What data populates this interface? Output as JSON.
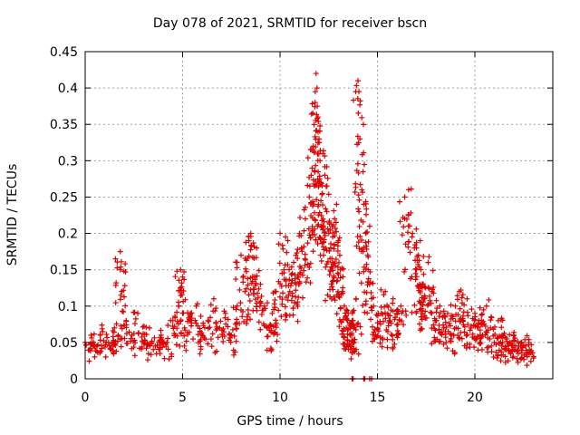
{
  "chart_data": {
    "type": "scatter",
    "title": "Day 078 of 2021, SRMTID for receiver bscn",
    "xlabel": "GPS time / hours",
    "ylabel": "SRMTID / TECUs",
    "xlim": [
      0,
      24
    ],
    "ylim": [
      0,
      0.45
    ],
    "grid": true,
    "marker": "+",
    "color": "#dd0000",
    "xticks": [
      "0",
      "5",
      "10",
      "15",
      "20"
    ],
    "yticks": [
      "0",
      "0.05",
      "0.1",
      "0.15",
      "0.2",
      "0.25",
      "0.3",
      "0.35",
      "0.4",
      "0.45"
    ],
    "series": [
      {
        "name": "SRMTID",
        "x": [
          0.0,
          0.3,
          0.6,
          0.9,
          1.2,
          1.5,
          1.7,
          1.8,
          1.8,
          2.1,
          2.4,
          2.7,
          3.0,
          3.3,
          3.6,
          3.9,
          4.2,
          4.5,
          4.8,
          4.9,
          5.0,
          5.1,
          5.4,
          5.7,
          6.0,
          6.3,
          6.6,
          6.9,
          7.2,
          7.5,
          7.8,
          8.0,
          8.2,
          8.4,
          8.5,
          8.6,
          8.8,
          9.0,
          9.2,
          9.4,
          9.6,
          9.8,
          10.0,
          10.2,
          10.4,
          10.5,
          10.7,
          10.9,
          11.0,
          11.1,
          11.3,
          11.5,
          11.6,
          11.7,
          11.8,
          11.85,
          11.9,
          11.95,
          12.0,
          12.05,
          12.1,
          12.2,
          12.3,
          12.4,
          12.5,
          12.6,
          12.7,
          12.8,
          12.9,
          13.0,
          13.1,
          13.2,
          13.3,
          13.4,
          13.5,
          13.6,
          13.7,
          13.8,
          13.9,
          14.0,
          14.05,
          14.1,
          14.2,
          14.3,
          14.4,
          14.5,
          14.6,
          14.8,
          15.0,
          15.2,
          15.4,
          15.6,
          15.8,
          16.0,
          16.2,
          16.4,
          16.6,
          16.8,
          17.0,
          17.1,
          17.2,
          17.3,
          17.4,
          17.6,
          17.8,
          18.0,
          18.2,
          18.4,
          18.6,
          18.8,
          19.0,
          19.2,
          19.4,
          19.6,
          19.8,
          20.0,
          20.2,
          20.4,
          20.6,
          20.8,
          21.0,
          21.2,
          21.4,
          21.6,
          21.8,
          22.0,
          22.2,
          22.4,
          22.6,
          22.8,
          13.7,
          13.75,
          14.3,
          14.35,
          14.6,
          14.7
        ],
        "y": [
          0.05,
          0.06,
          0.045,
          0.065,
          0.05,
          0.07,
          0.06,
          0.175,
          0.15,
          0.08,
          0.06,
          0.09,
          0.05,
          0.07,
          0.045,
          0.06,
          0.05,
          0.08,
          0.1,
          0.15,
          0.14,
          0.07,
          0.09,
          0.1,
          0.06,
          0.08,
          0.11,
          0.07,
          0.09,
          0.06,
          0.1,
          0.17,
          0.12,
          0.19,
          0.2,
          0.14,
          0.18,
          0.13,
          0.1,
          0.07,
          0.09,
          0.12,
          0.2,
          0.15,
          0.19,
          0.12,
          0.16,
          0.14,
          0.2,
          0.18,
          0.22,
          0.25,
          0.28,
          0.32,
          0.38,
          0.42,
          0.4,
          0.36,
          0.33,
          0.3,
          0.27,
          0.31,
          0.28,
          0.23,
          0.2,
          0.18,
          0.16,
          0.22,
          0.24,
          0.19,
          0.15,
          0.12,
          0.1,
          0.07,
          0.09,
          0.06,
          0.08,
          0.05,
          0.11,
          0.41,
          0.395,
          0.33,
          0.26,
          0.24,
          0.2,
          0.17,
          0.13,
          0.1,
          0.07,
          0.09,
          0.12,
          0.08,
          0.11,
          0.09,
          0.1,
          0.25,
          0.26,
          0.2,
          0.15,
          0.17,
          0.19,
          0.13,
          0.11,
          0.16,
          0.12,
          0.08,
          0.1,
          0.07,
          0.09,
          0.06,
          0.1,
          0.12,
          0.08,
          0.11,
          0.07,
          0.09,
          0.08,
          0.06,
          0.1,
          0.07,
          0.05,
          0.08,
          0.06,
          0.04,
          0.05,
          0.06,
          0.04,
          0.05,
          0.045,
          0.04,
          0.0,
          0.0,
          0.0,
          0.0,
          0.0,
          0.0
        ]
      }
    ]
  }
}
